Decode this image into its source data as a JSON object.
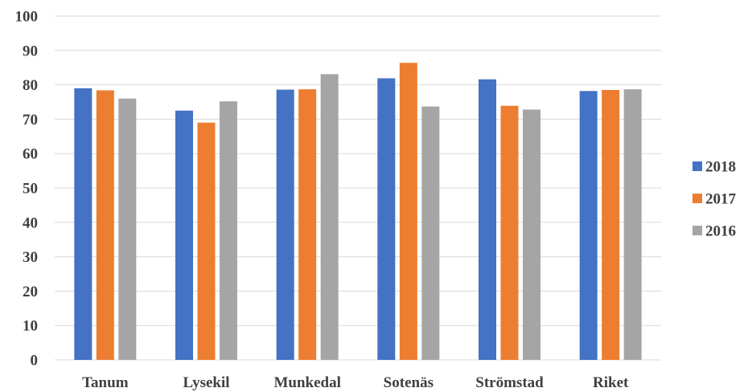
{
  "chart_data": {
    "type": "bar",
    "title": "",
    "xlabel": "",
    "ylabel": "",
    "categories": [
      "Tanum",
      "Lysekil",
      "Munkedal",
      "Sotenäs",
      "Strömstad",
      "Riket"
    ],
    "series": [
      {
        "name": "2018",
        "color": "#4472c4",
        "values": [
          79.0,
          72.5,
          78.6,
          81.9,
          81.6,
          78.2
        ]
      },
      {
        "name": "2017",
        "color": "#ed7d31",
        "values": [
          78.4,
          69.0,
          78.7,
          86.4,
          73.9,
          78.5
        ]
      },
      {
        "name": "2016",
        "color": "#a5a5a5",
        "values": [
          76.0,
          75.2,
          83.1,
          73.7,
          72.8,
          78.7
        ]
      }
    ],
    "ylim": [
      0,
      100
    ],
    "yticks": [
      0,
      10,
      20,
      30,
      40,
      50,
      60,
      70,
      80,
      90,
      100
    ],
    "grid": true,
    "legend_position": "right"
  }
}
